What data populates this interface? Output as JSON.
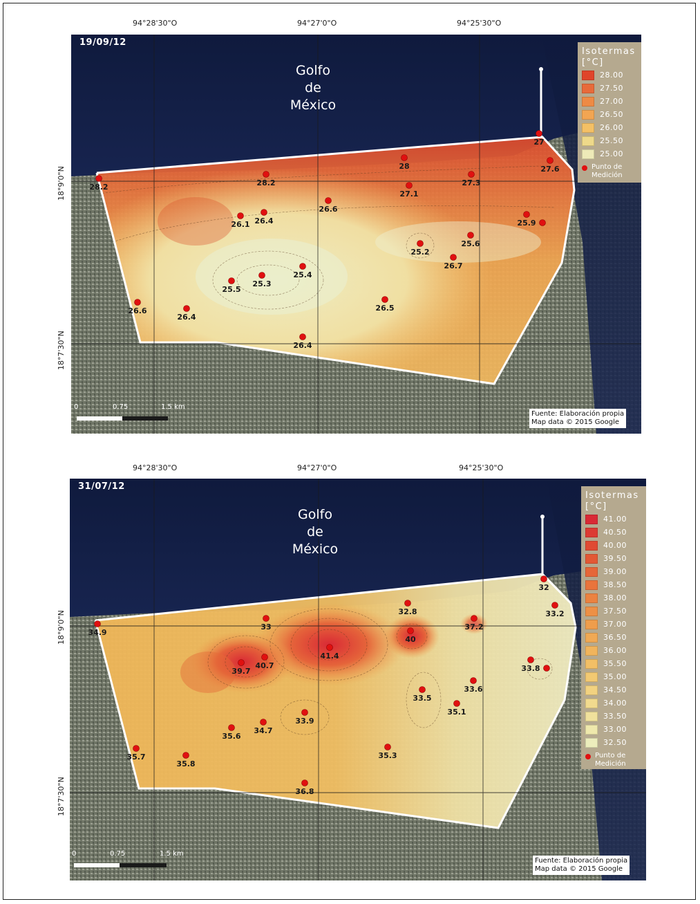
{
  "maps": [
    {
      "date": "19/09/12",
      "lon_labels": [
        "94°28'30\"O",
        "94°27'0\"O",
        "94°25'30\"O"
      ],
      "lat_labels": [
        "18°9'0\"N",
        "18°7'30\"N"
      ],
      "gulf_lines": [
        "Golfo",
        "de",
        "México"
      ],
      "legend": {
        "title_1": "Isotermas",
        "title_2": "[°C]",
        "entries": [
          {
            "label": "28.00",
            "color": "#e0442a"
          },
          {
            "label": "27.50",
            "color": "#e86a3a"
          },
          {
            "label": "27.00",
            "color": "#ee8a44"
          },
          {
            "label": "26.50",
            "color": "#f2a552"
          },
          {
            "label": "26.00",
            "color": "#f4c065"
          },
          {
            "label": "25.50",
            "color": "#eed98a"
          },
          {
            "label": "25.00",
            "color": "#eeeab8"
          }
        ],
        "point_label_1": "Punto de",
        "point_label_2": "Medición"
      },
      "points": [
        {
          "value": "28.2"
        },
        {
          "value": "28.2"
        },
        {
          "value": "28"
        },
        {
          "value": "27.3"
        },
        {
          "value": "27"
        },
        {
          "value": "27.6"
        },
        {
          "value": "27.1"
        },
        {
          "value": "26.6"
        },
        {
          "value": "26.1"
        },
        {
          "value": "26.4"
        },
        {
          "value": "25.9"
        },
        {
          "value": "25.6"
        },
        {
          "value": "25.2"
        },
        {
          "value": "26.7"
        },
        {
          "value": "25.4"
        },
        {
          "value": "25.3"
        },
        {
          "value": "25.5"
        },
        {
          "value": "26.6"
        },
        {
          "value": "26.4"
        },
        {
          "value": "26.5"
        },
        {
          "value": "26.4"
        },
        {
          "value": ""
        }
      ],
      "scale": {
        "t0": "0",
        "t1": "0.75",
        "t2": "1.5 km"
      },
      "source_1": "Fuente:  Elaboración propia",
      "source_2": "Map data © 2015 Google"
    },
    {
      "date": "31/07/12",
      "lon_labels": [
        "94°28'30\"O",
        "94°27'0\"O",
        "94°25'30\"O"
      ],
      "lat_labels": [
        "18°9'0\"N",
        "18°7'30\"N"
      ],
      "gulf_lines": [
        "Golfo",
        "de",
        "México"
      ],
      "legend": {
        "title_1": "Isotermas",
        "title_2": "[°C]",
        "entries": [
          {
            "label": "41.00",
            "color": "#d92a35"
          },
          {
            "label": "40.50",
            "color": "#dc3a33"
          },
          {
            "label": "40.00",
            "color": "#e04a33"
          },
          {
            "label": "39.50",
            "color": "#e35835"
          },
          {
            "label": "39.00",
            "color": "#e66638"
          },
          {
            "label": "38.50",
            "color": "#e9743c"
          },
          {
            "label": "38.00",
            "color": "#eb8240"
          },
          {
            "label": "37.50",
            "color": "#ed9046"
          },
          {
            "label": "37.00",
            "color": "#ef9d4c"
          },
          {
            "label": "36.50",
            "color": "#f0a954"
          },
          {
            "label": "36.00",
            "color": "#f1b45c"
          },
          {
            "label": "35.50",
            "color": "#f2bf66"
          },
          {
            "label": "35.00",
            "color": "#f2c972"
          },
          {
            "label": "34.50",
            "color": "#f2d280"
          },
          {
            "label": "34.00",
            "color": "#f1da8e"
          },
          {
            "label": "33.50",
            "color": "#f0e19c"
          },
          {
            "label": "33.00",
            "color": "#eee8ac"
          },
          {
            "label": "32.50",
            "color": "#ecedbc"
          }
        ],
        "point_label_1": "Punto de",
        "point_label_2": "Medición"
      },
      "points": [
        {
          "value": "34.9"
        },
        {
          "value": "33"
        },
        {
          "value": "32.8"
        },
        {
          "value": "37.2"
        },
        {
          "value": "32"
        },
        {
          "value": "33.2"
        },
        {
          "value": "41.4"
        },
        {
          "value": "40"
        },
        {
          "value": "39.7"
        },
        {
          "value": "40.7"
        },
        {
          "value": "33.8"
        },
        {
          "value": "33.6"
        },
        {
          "value": "33.5"
        },
        {
          "value": "35.1"
        },
        {
          "value": "33.9"
        },
        {
          "value": "34.7"
        },
        {
          "value": "35.6"
        },
        {
          "value": "35.7"
        },
        {
          "value": "35.8"
        },
        {
          "value": "35.3"
        },
        {
          "value": "36.8"
        },
        {
          "value": ""
        }
      ],
      "scale": {
        "t0": "0",
        "t1": "0.75",
        "t2": "1.5 km"
      },
      "source_1": "Fuente:  Elaboración propia",
      "source_2": "Map data © 2015 Google"
    }
  ]
}
